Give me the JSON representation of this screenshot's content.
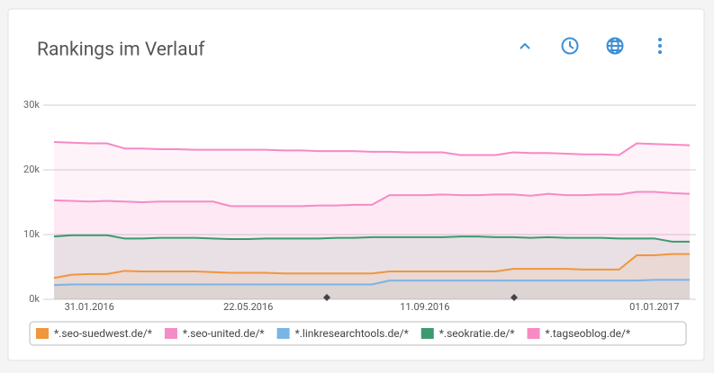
{
  "chart_data": {
    "type": "line",
    "title": "Rankings im Verlauf",
    "categories": [
      null,
      null,
      "31.01.2016",
      null,
      null,
      null,
      null,
      null,
      null,
      null,
      null,
      "22.05.2016",
      null,
      null,
      null,
      null,
      null,
      null,
      null,
      null,
      null,
      "11.09.2016",
      null,
      null,
      null,
      null,
      null,
      null,
      null,
      null,
      null,
      null,
      null,
      null,
      "01.01.2017",
      null,
      null
    ],
    "ylim": [
      0,
      30000
    ],
    "yticks": [
      {
        "value": 0,
        "label": "0k"
      },
      {
        "value": 10000,
        "label": "10k"
      },
      {
        "value": 20000,
        "label": "20k"
      },
      {
        "value": 30000,
        "label": "30k"
      }
    ],
    "grid": true,
    "area_fill": true,
    "legend": "bottom",
    "series": [
      {
        "name": "*.seo-suedwest.de/*",
        "color": "#f0963c",
        "values": [
          3300,
          3800,
          3900,
          3900,
          4400,
          4300,
          4300,
          4300,
          4300,
          4200,
          4100,
          4100,
          4100,
          4000,
          4000,
          4000,
          4000,
          4000,
          4000,
          4300,
          4300,
          4300,
          4300,
          4300,
          4300,
          4300,
          4700,
          4700,
          4700,
          4700,
          4600,
          4600,
          4600,
          6800,
          6800,
          7000,
          7000
        ]
      },
      {
        "name": "*.seo-united.de/*",
        "color": "#f48cc6",
        "values": [
          15300,
          15200,
          15100,
          15200,
          15100,
          15000,
          15100,
          15100,
          15100,
          15100,
          14400,
          14400,
          14400,
          14400,
          14400,
          14500,
          14500,
          14600,
          14600,
          16100,
          16100,
          16100,
          16200,
          16100,
          16100,
          16200,
          16200,
          16000,
          16300,
          16100,
          16100,
          16200,
          16200,
          16600,
          16600,
          16400,
          16300
        ]
      },
      {
        "name": "*.linkresearchtools.de/*",
        "color": "#7ab4e6",
        "values": [
          2200,
          2300,
          2300,
          2300,
          2300,
          2300,
          2300,
          2300,
          2300,
          2300,
          2300,
          2300,
          2300,
          2300,
          2300,
          2300,
          2300,
          2300,
          2300,
          2900,
          2900,
          2900,
          2900,
          2900,
          2900,
          2900,
          2900,
          2900,
          2900,
          2900,
          2900,
          2900,
          2900,
          2900,
          3000,
          3000,
          3000
        ]
      },
      {
        "name": "*.seokratie.de/*",
        "color": "#3d9970",
        "values": [
          9700,
          9900,
          9900,
          9900,
          9400,
          9400,
          9500,
          9500,
          9500,
          9400,
          9300,
          9300,
          9400,
          9400,
          9400,
          9400,
          9500,
          9500,
          9600,
          9600,
          9600,
          9600,
          9600,
          9700,
          9700,
          9600,
          9600,
          9500,
          9600,
          9500,
          9500,
          9500,
          9400,
          9400,
          9400,
          8900,
          8900
        ]
      },
      {
        "name": "*.tagseoblog.de/*",
        "color": "#f68ac4",
        "values": [
          24300,
          24200,
          24100,
          24100,
          23300,
          23300,
          23200,
          23200,
          23100,
          23100,
          23100,
          23100,
          23100,
          23000,
          23000,
          22900,
          22900,
          22900,
          22800,
          22800,
          22700,
          22700,
          22700,
          22300,
          22300,
          22300,
          22700,
          22600,
          22600,
          22500,
          22400,
          22400,
          22300,
          24100,
          24000,
          23900,
          23800
        ]
      }
    ]
  }
}
